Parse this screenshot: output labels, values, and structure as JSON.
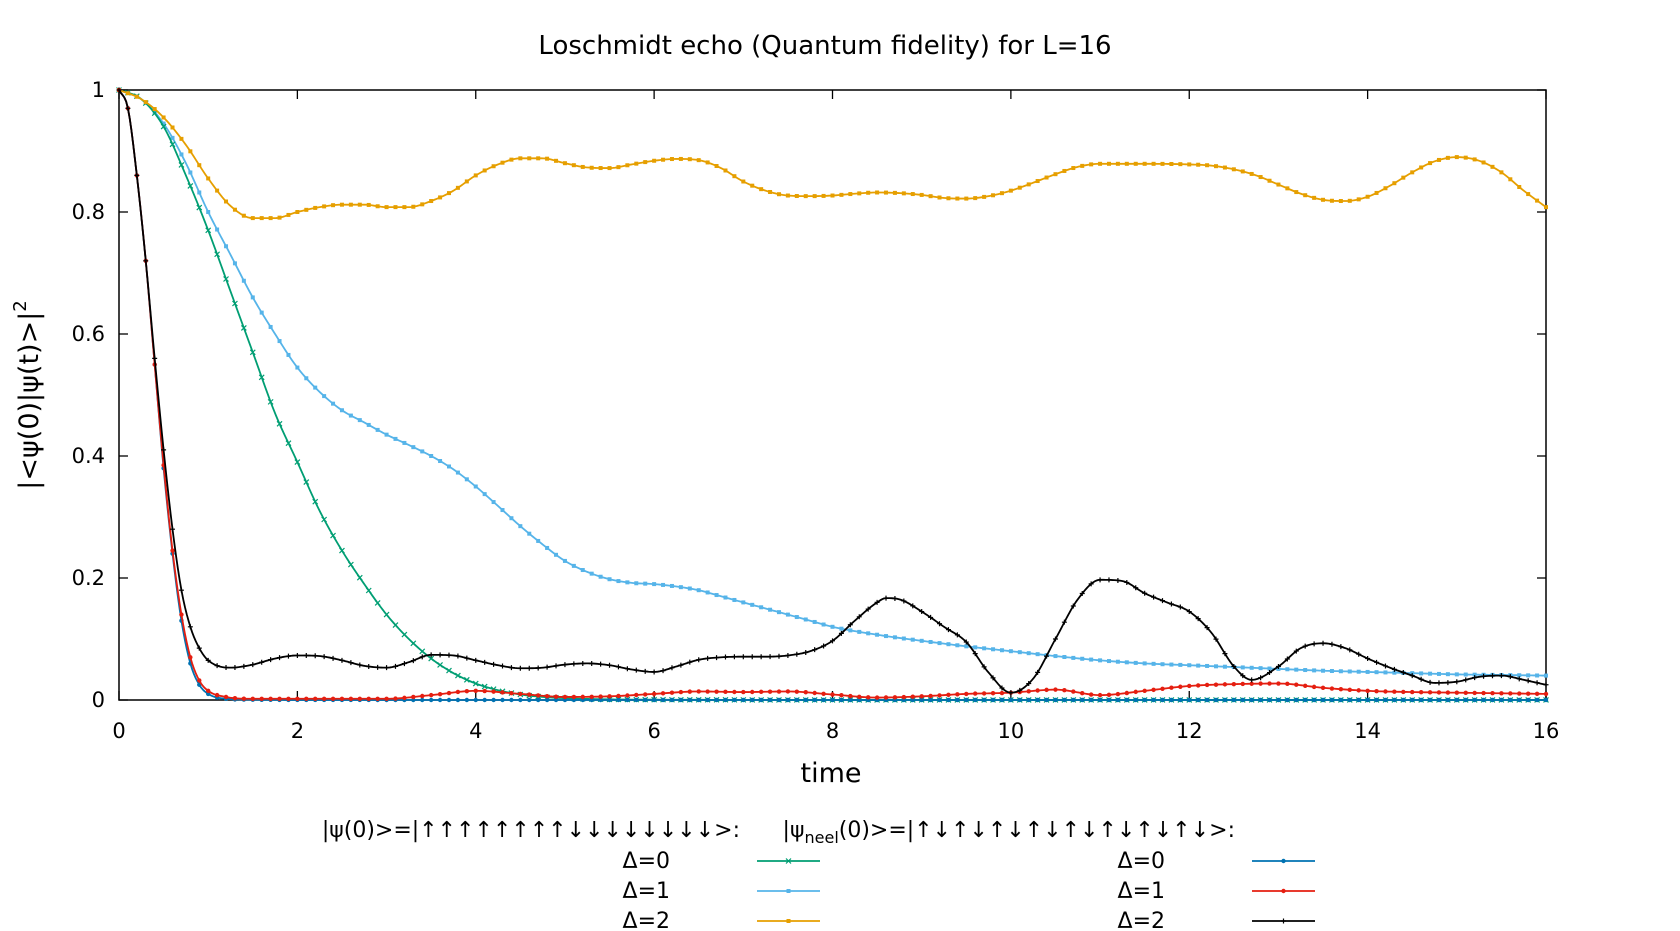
{
  "chart_data": {
    "type": "line",
    "title": "Loschmidt echo (Quantum fidelity) for L=16",
    "xlabel": "time",
    "ylabel": "|<ψ(0)|ψ(t)>|",
    "ylabel_sup": "2",
    "xlim": [
      0,
      16
    ],
    "ylim": [
      0,
      1
    ],
    "x_ticks": [
      0,
      2,
      4,
      6,
      8,
      10,
      12,
      14,
      16
    ],
    "x_tick_labels": [
      "0",
      "2",
      "4",
      "6",
      "8",
      "10",
      "12",
      "14",
      "16"
    ],
    "y_ticks": [
      0,
      0.2,
      0.4,
      0.6,
      0.8,
      1
    ],
    "y_tick_labels": [
      "0",
      "0.2",
      "0.4",
      "0.6",
      "0.8",
      "1"
    ],
    "grid": false,
    "legend_placement": "bottom",
    "legend_groups": [
      {
        "header": "|ψ(0)>=|↑↑↑↑↑↑↑↑↓↓↓↓↓↓↓↓>:"
      },
      {
        "header_prefix": "|ψ",
        "header_sub": "neel",
        "header_suffix": "(0)>=|↑↓↑↓↑↓↑↓↑↓↑↓↑↓↑↓>:"
      }
    ],
    "series": [
      {
        "name": "Δ=0",
        "group": 0,
        "color": "#009e73",
        "marker": "x",
        "points": [
          [
            0,
            1
          ],
          [
            0.25,
            0.985
          ],
          [
            0.5,
            0.94
          ],
          [
            0.75,
            0.86
          ],
          [
            1,
            0.77
          ],
          [
            1.25,
            0.67
          ],
          [
            1.5,
            0.57
          ],
          [
            1.75,
            0.47
          ],
          [
            2,
            0.39
          ],
          [
            2.25,
            0.31
          ],
          [
            2.5,
            0.245
          ],
          [
            2.75,
            0.19
          ],
          [
            3,
            0.14
          ],
          [
            3.25,
            0.1
          ],
          [
            3.5,
            0.068
          ],
          [
            3.75,
            0.044
          ],
          [
            4,
            0.027
          ],
          [
            4.25,
            0.016
          ],
          [
            4.5,
            0.009
          ],
          [
            4.75,
            0.005
          ],
          [
            5,
            0.003
          ],
          [
            5.5,
            0.001
          ],
          [
            6,
            0.0005
          ],
          [
            7,
            0.0002
          ],
          [
            8,
            0.0001
          ],
          [
            10,
            0.0001
          ],
          [
            12,
            0.0001
          ],
          [
            14,
            0.0001
          ],
          [
            16,
            0.0001
          ]
        ]
      },
      {
        "name": "Δ=1",
        "group": 0,
        "color": "#56b4e9",
        "marker": "square",
        "points": [
          [
            0,
            1
          ],
          [
            0.25,
            0.985
          ],
          [
            0.5,
            0.945
          ],
          [
            0.75,
            0.88
          ],
          [
            1,
            0.8
          ],
          [
            1.25,
            0.73
          ],
          [
            1.5,
            0.66
          ],
          [
            1.75,
            0.6
          ],
          [
            2,
            0.545
          ],
          [
            2.25,
            0.505
          ],
          [
            2.5,
            0.475
          ],
          [
            2.75,
            0.455
          ],
          [
            3,
            0.435
          ],
          [
            3.25,
            0.418
          ],
          [
            3.5,
            0.4
          ],
          [
            3.75,
            0.378
          ],
          [
            4,
            0.35
          ],
          [
            4.25,
            0.318
          ],
          [
            4.5,
            0.285
          ],
          [
            4.75,
            0.255
          ],
          [
            5,
            0.228
          ],
          [
            5.25,
            0.21
          ],
          [
            5.5,
            0.198
          ],
          [
            5.75,
            0.192
          ],
          [
            6,
            0.19
          ],
          [
            6.25,
            0.186
          ],
          [
            6.5,
            0.18
          ],
          [
            6.75,
            0.17
          ],
          [
            7,
            0.16
          ],
          [
            7.25,
            0.15
          ],
          [
            7.5,
            0.14
          ],
          [
            7.75,
            0.13
          ],
          [
            8,
            0.12
          ],
          [
            8.5,
            0.107
          ],
          [
            9,
            0.097
          ],
          [
            9.5,
            0.088
          ],
          [
            10,
            0.08
          ],
          [
            10.5,
            0.072
          ],
          [
            11,
            0.065
          ],
          [
            11.5,
            0.06
          ],
          [
            12,
            0.057
          ],
          [
            12.5,
            0.054
          ],
          [
            13,
            0.051
          ],
          [
            13.5,
            0.048
          ],
          [
            14,
            0.046
          ],
          [
            14.5,
            0.044
          ],
          [
            15,
            0.042
          ],
          [
            15.5,
            0.041
          ],
          [
            16,
            0.04
          ]
        ]
      },
      {
        "name": "Δ=2",
        "group": 0,
        "color": "#e69f00",
        "marker": "square",
        "points": [
          [
            0,
            1
          ],
          [
            0.25,
            0.985
          ],
          [
            0.5,
            0.955
          ],
          [
            0.75,
            0.91
          ],
          [
            1,
            0.855
          ],
          [
            1.25,
            0.81
          ],
          [
            1.5,
            0.79
          ],
          [
            1.75,
            0.79
          ],
          [
            2,
            0.8
          ],
          [
            2.25,
            0.808
          ],
          [
            2.5,
            0.812
          ],
          [
            2.75,
            0.812
          ],
          [
            3,
            0.808
          ],
          [
            3.25,
            0.808
          ],
          [
            3.5,
            0.818
          ],
          [
            3.75,
            0.835
          ],
          [
            4,
            0.86
          ],
          [
            4.25,
            0.878
          ],
          [
            4.5,
            0.888
          ],
          [
            4.75,
            0.888
          ],
          [
            5,
            0.88
          ],
          [
            5.25,
            0.873
          ],
          [
            5.5,
            0.872
          ],
          [
            5.75,
            0.878
          ],
          [
            6,
            0.884
          ],
          [
            6.25,
            0.887
          ],
          [
            6.5,
            0.885
          ],
          [
            6.75,
            0.872
          ],
          [
            7,
            0.85
          ],
          [
            7.25,
            0.835
          ],
          [
            7.5,
            0.827
          ],
          [
            7.75,
            0.826
          ],
          [
            8,
            0.827
          ],
          [
            8.25,
            0.83
          ],
          [
            8.5,
            0.832
          ],
          [
            8.75,
            0.831
          ],
          [
            9,
            0.828
          ],
          [
            9.25,
            0.823
          ],
          [
            9.5,
            0.822
          ],
          [
            9.75,
            0.826
          ],
          [
            10,
            0.835
          ],
          [
            10.25,
            0.848
          ],
          [
            10.5,
            0.862
          ],
          [
            10.75,
            0.874
          ],
          [
            11,
            0.879
          ],
          [
            11.5,
            0.879
          ],
          [
            12,
            0.878
          ],
          [
            12.25,
            0.876
          ],
          [
            12.5,
            0.87
          ],
          [
            12.75,
            0.86
          ],
          [
            13,
            0.845
          ],
          [
            13.25,
            0.83
          ],
          [
            13.5,
            0.82
          ],
          [
            13.75,
            0.818
          ],
          [
            14,
            0.825
          ],
          [
            14.25,
            0.843
          ],
          [
            14.5,
            0.865
          ],
          [
            14.75,
            0.883
          ],
          [
            15,
            0.89
          ],
          [
            15.25,
            0.884
          ],
          [
            15.5,
            0.865
          ],
          [
            15.75,
            0.835
          ],
          [
            16,
            0.808
          ]
        ]
      },
      {
        "name": "Δ=0",
        "group": 1,
        "color": "#0072b2",
        "marker": "dot",
        "points": [
          [
            0,
            1
          ],
          [
            0.1,
            0.97
          ],
          [
            0.2,
            0.86
          ],
          [
            0.3,
            0.72
          ],
          [
            0.4,
            0.55
          ],
          [
            0.5,
            0.38
          ],
          [
            0.6,
            0.24
          ],
          [
            0.7,
            0.13
          ],
          [
            0.8,
            0.06
          ],
          [
            0.9,
            0.025
          ],
          [
            1,
            0.01
          ],
          [
            1.2,
            0.002
          ],
          [
            1.5,
            0.0005
          ],
          [
            2,
            0.0001
          ],
          [
            4,
            0
          ],
          [
            8,
            0
          ],
          [
            12,
            0
          ],
          [
            16,
            0
          ]
        ]
      },
      {
        "name": "Δ=1",
        "group": 1,
        "color": "#e51e10",
        "marker": "dot",
        "points": [
          [
            0,
            1
          ],
          [
            0.1,
            0.97
          ],
          [
            0.2,
            0.86
          ],
          [
            0.3,
            0.72
          ],
          [
            0.4,
            0.55
          ],
          [
            0.5,
            0.385
          ],
          [
            0.6,
            0.245
          ],
          [
            0.7,
            0.14
          ],
          [
            0.8,
            0.07
          ],
          [
            0.9,
            0.032
          ],
          [
            1,
            0.015
          ],
          [
            1.2,
            0.005
          ],
          [
            1.5,
            0.002
          ],
          [
            2,
            0.002
          ],
          [
            3,
            0.002
          ],
          [
            3.5,
            0.008
          ],
          [
            4,
            0.015
          ],
          [
            4.5,
            0.01
          ],
          [
            5,
            0.005
          ],
          [
            5.5,
            0.006
          ],
          [
            6,
            0.01
          ],
          [
            6.5,
            0.014
          ],
          [
            7,
            0.013
          ],
          [
            7.5,
            0.014
          ],
          [
            8,
            0.009
          ],
          [
            8.5,
            0.004
          ],
          [
            9,
            0.006
          ],
          [
            9.5,
            0.01
          ],
          [
            10,
            0.012
          ],
          [
            10.5,
            0.017
          ],
          [
            11,
            0.008
          ],
          [
            11.5,
            0.015
          ],
          [
            12,
            0.023
          ],
          [
            12.5,
            0.026
          ],
          [
            13,
            0.027
          ],
          [
            13.5,
            0.02
          ],
          [
            14,
            0.015
          ],
          [
            14.5,
            0.013
          ],
          [
            15,
            0.012
          ],
          [
            15.5,
            0.011
          ],
          [
            16,
            0.01
          ]
        ]
      },
      {
        "name": "Δ=2",
        "group": 1,
        "color": "#000000",
        "marker": "plus",
        "points": [
          [
            0,
            1
          ],
          [
            0.1,
            0.97
          ],
          [
            0.2,
            0.86
          ],
          [
            0.3,
            0.72
          ],
          [
            0.4,
            0.56
          ],
          [
            0.5,
            0.41
          ],
          [
            0.6,
            0.28
          ],
          [
            0.7,
            0.18
          ],
          [
            0.8,
            0.12
          ],
          [
            0.9,
            0.085
          ],
          [
            1,
            0.065
          ],
          [
            1.25,
            0.053
          ],
          [
            1.5,
            0.058
          ],
          [
            1.75,
            0.068
          ],
          [
            2,
            0.073
          ],
          [
            2.25,
            0.072
          ],
          [
            2.5,
            0.065
          ],
          [
            2.75,
            0.056
          ],
          [
            3,
            0.053
          ],
          [
            3.25,
            0.062
          ],
          [
            3.5,
            0.074
          ],
          [
            3.75,
            0.073
          ],
          [
            4,
            0.065
          ],
          [
            4.25,
            0.057
          ],
          [
            4.5,
            0.052
          ],
          [
            4.75,
            0.053
          ],
          [
            5,
            0.058
          ],
          [
            5.25,
            0.06
          ],
          [
            5.5,
            0.057
          ],
          [
            5.75,
            0.05
          ],
          [
            6,
            0.046
          ],
          [
            6.25,
            0.055
          ],
          [
            6.5,
            0.066
          ],
          [
            6.75,
            0.07
          ],
          [
            7,
            0.071
          ],
          [
            7.25,
            0.071
          ],
          [
            7.5,
            0.073
          ],
          [
            7.75,
            0.08
          ],
          [
            8,
            0.097
          ],
          [
            8.25,
            0.13
          ],
          [
            8.5,
            0.16
          ],
          [
            8.6,
            0.167
          ],
          [
            8.75,
            0.165
          ],
          [
            9,
            0.145
          ],
          [
            9.25,
            0.12
          ],
          [
            9.5,
            0.095
          ],
          [
            9.75,
            0.045
          ],
          [
            10,
            0.012
          ],
          [
            10.25,
            0.035
          ],
          [
            10.5,
            0.1
          ],
          [
            10.75,
            0.165
          ],
          [
            11,
            0.197
          ],
          [
            11.25,
            0.195
          ],
          [
            11.5,
            0.175
          ],
          [
            11.75,
            0.16
          ],
          [
            12,
            0.145
          ],
          [
            12.25,
            0.11
          ],
          [
            12.5,
            0.055
          ],
          [
            12.7,
            0.033
          ],
          [
            13,
            0.055
          ],
          [
            13.25,
            0.085
          ],
          [
            13.5,
            0.093
          ],
          [
            13.75,
            0.085
          ],
          [
            14,
            0.068
          ],
          [
            14.25,
            0.053
          ],
          [
            14.5,
            0.04
          ],
          [
            14.75,
            0.028
          ],
          [
            15,
            0.03
          ],
          [
            15.25,
            0.038
          ],
          [
            15.5,
            0.04
          ],
          [
            15.75,
            0.033
          ],
          [
            16,
            0.025
          ]
        ]
      }
    ]
  }
}
